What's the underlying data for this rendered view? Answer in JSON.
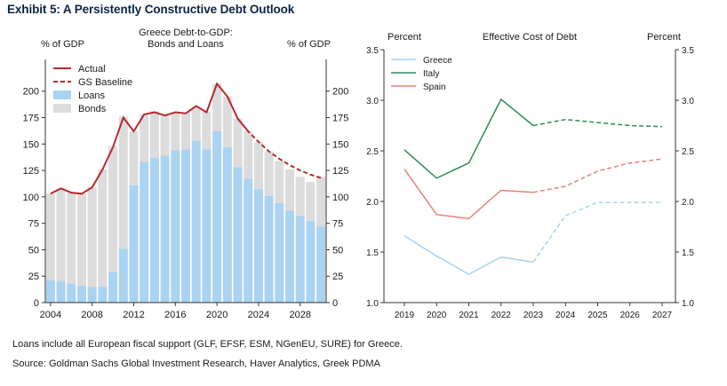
{
  "exhibit": {
    "title": "Exhibit 5: A Persistently Constructive Debt Outlook",
    "note": "Loans include all European fiscal support (GLF, EFSF, ESM, NGenEU, SURE) for Greece.",
    "source": "Source: Goldman Sachs Global Investment Research, Haver Analytics, Greek PDMA"
  },
  "chart_data": [
    {
      "type": "bar",
      "title": "Greece Debt-to-GDP:",
      "subtitle": "Bonds and Loans",
      "ylabel_left": "% of GDP",
      "ylabel_right": "% of GDP",
      "ylim": [
        0,
        230
      ],
      "yticks": [
        0,
        25,
        50,
        75,
        100,
        125,
        150,
        175,
        200
      ],
      "xlim": [
        2003.5,
        2030.5
      ],
      "xticks": [
        2004,
        2008,
        2012,
        2016,
        2020,
        2024,
        2028
      ],
      "legend_position": "top-left",
      "grid": false,
      "colors": {
        "actual": "#b52a2f",
        "baseline": "#b52a2f",
        "loans": "#a9d3f0",
        "bonds": "#dcdcdc"
      },
      "legend": [
        {
          "key": "actual",
          "label": "Actual"
        },
        {
          "key": "baseline",
          "label": "GS Baseline"
        },
        {
          "key": "loans",
          "label": "Loans"
        },
        {
          "key": "bonds",
          "label": "Bonds"
        }
      ],
      "years": [
        2004,
        2005,
        2006,
        2007,
        2008,
        2009,
        2010,
        2011,
        2012,
        2013,
        2014,
        2015,
        2016,
        2017,
        2018,
        2019,
        2020,
        2021,
        2022,
        2023,
        2024,
        2025,
        2026,
        2027,
        2028,
        2029,
        2030
      ],
      "series": [
        {
          "name": "Loans",
          "values": [
            21,
            20,
            18,
            16,
            15,
            15,
            29,
            51,
            111,
            133,
            137,
            139,
            144,
            145,
            153,
            145,
            162,
            147,
            128,
            117,
            107,
            101,
            94,
            87,
            82,
            77,
            72
          ]
        },
        {
          "name": "Bonds",
          "values": [
            82,
            88,
            86,
            87,
            94,
            111,
            119,
            125,
            51,
            45,
            44,
            38,
            36,
            35,
            32,
            36,
            45,
            48,
            46,
            45,
            45,
            42,
            40,
            39,
            37,
            37,
            47
          ]
        },
        {
          "name": "Actual",
          "x": [
            2004,
            2005,
            2006,
            2007,
            2008,
            2009,
            2010,
            2011,
            2012,
            2013,
            2014,
            2015,
            2016,
            2017,
            2018,
            2019,
            2020,
            2021,
            2022,
            2023
          ],
          "values": [
            103,
            108,
            104,
            103,
            109,
            126,
            147,
            175,
            162,
            178,
            180,
            177,
            180,
            179,
            186,
            180,
            207,
            195,
            174,
            162
          ]
        },
        {
          "name": "GS Baseline",
          "x": [
            2022,
            2023,
            2024,
            2025,
            2026,
            2027,
            2028,
            2029,
            2030
          ],
          "values": [
            174,
            162,
            152,
            143,
            136,
            130,
            125,
            121,
            118
          ]
        }
      ]
    },
    {
      "type": "line",
      "title": "Effective Cost of Debt",
      "ylabel_left": "Percent",
      "ylabel_right": "Percent",
      "ylim": [
        1.0,
        3.5
      ],
      "yticks": [
        1.0,
        1.5,
        2.0,
        2.5,
        3.0,
        3.5
      ],
      "categories": [
        "2019",
        "2020",
        "2021",
        "2022",
        "2023",
        "2024",
        "2025",
        "2026",
        "2027"
      ],
      "legend_position": "top-left",
      "grid": false,
      "projection_from_index": 4,
      "series": [
        {
          "name": "Greece",
          "color": "#a9d3f0",
          "values": [
            1.66,
            1.46,
            1.28,
            1.45,
            1.4,
            1.86,
            1.99,
            1.99,
            1.99
          ]
        },
        {
          "name": "Italy",
          "color": "#2e8b57",
          "values": [
            2.51,
            2.23,
            2.38,
            3.01,
            2.75,
            2.81,
            2.78,
            2.75,
            2.74
          ]
        },
        {
          "name": "Spain",
          "color": "#e5817d",
          "values": [
            2.32,
            1.87,
            1.83,
            2.11,
            2.09,
            2.15,
            2.3,
            2.38,
            2.42
          ]
        }
      ]
    }
  ]
}
